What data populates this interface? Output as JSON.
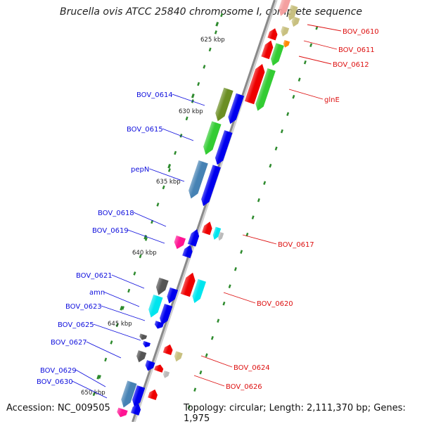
{
  "title": "Brucella ovis ATCC 25840 chromosome I, complete sequence",
  "footer": {
    "accession": "Accession: NC_009505",
    "summary": "Topology: circular; Length: 2,111,370 bp; Genes: 1,975"
  },
  "colors": {
    "backbone": "#8a8a8a",
    "tick": "#2e8b2e",
    "left_label": "#1010dd",
    "right_label": "#dd1010",
    "kbp_label": "#222222"
  },
  "kbp_markers": [
    {
      "label": "625 kbp"
    },
    {
      "label": "630 kbp"
    },
    {
      "label": "635 kbp"
    },
    {
      "label": "640 kbp"
    },
    {
      "label": "645 kbp"
    },
    {
      "label": "650 kbp"
    }
  ],
  "left_labels": [
    "BOV_0614",
    "BOV_0615",
    "pepN",
    "BOV_0618",
    "BOV_0619",
    "BOV_0621",
    "amn",
    "BOV_0623",
    "BOV_0625",
    "BOV_0627",
    "BOV_0629",
    "BOV_0630"
  ],
  "right_labels": [
    "BOV_0610",
    "BOV_0611",
    "BOV_0612",
    "glnE",
    "BOV_0617",
    "BOV_0620",
    "BOV_0624",
    "BOV_0626"
  ]
}
